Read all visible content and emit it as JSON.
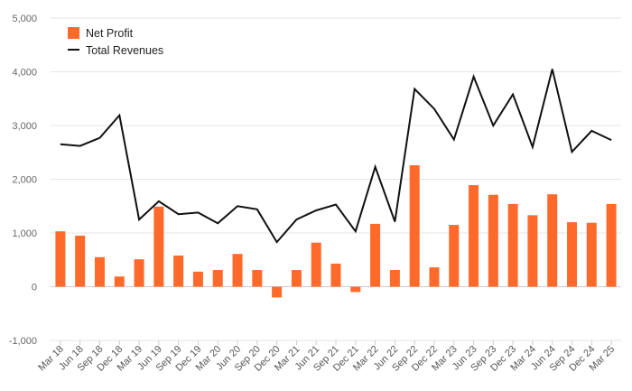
{
  "chart_data": {
    "type": "bar",
    "categories": [
      "Mar 18",
      "Jun 18",
      "Sep 18",
      "Dec 18",
      "Mar 19",
      "Jun 19",
      "Sep 19",
      "Dec 19",
      "Mar 20",
      "Jun 20",
      "Sep 20",
      "Dec 20",
      "Mar 21",
      "Jun 21",
      "Sep 21",
      "Dec 21",
      "Mar 22",
      "Jun 22",
      "Sep 22",
      "Dec 22",
      "Mar 23",
      "Jun 23",
      "Sep 23",
      "Dec 23",
      "Mar 24",
      "Jun 24",
      "Sep 24",
      "Dec 24",
      "Mar 25"
    ],
    "series": [
      {
        "name": "Net Profit",
        "type": "bar",
        "color": "#ff6a2b",
        "values": [
          1030,
          950,
          550,
          190,
          510,
          1490,
          580,
          280,
          310,
          610,
          310,
          -200,
          310,
          820,
          430,
          -100,
          1170,
          310,
          2260,
          360,
          1150,
          1890,
          1710,
          1540,
          1330,
          1720,
          1200,
          1190,
          1540
        ]
      },
      {
        "name": "Total Revenues",
        "type": "line",
        "color": "#111111",
        "values": [
          2650,
          2620,
          2770,
          3190,
          1250,
          1590,
          1350,
          1380,
          1180,
          1500,
          1440,
          830,
          1250,
          1420,
          1530,
          1030,
          2230,
          1210,
          3680,
          3310,
          2740,
          3910,
          3000,
          3580,
          2600,
          4050,
          2510,
          2900,
          2730
        ]
      }
    ],
    "yticks": [
      "-1,000",
      "0",
      "1,000",
      "2,000",
      "3,000",
      "4,000",
      "5,000"
    ],
    "ylim": [
      -1000,
      5000
    ],
    "legend_position": "top-left",
    "grid": true
  }
}
